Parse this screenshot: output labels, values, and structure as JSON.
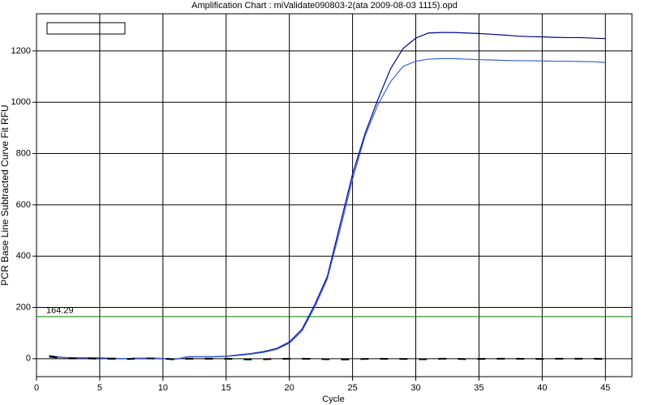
{
  "chart_data": {
    "type": "line",
    "title": "Amplification Chart : miValidate090803-2(ata 2009-08-03 1115).opd",
    "xlabel": "Cycle",
    "ylabel": "PCR Base Line Subtracted Curve Fit RFU",
    "x": [
      1,
      2,
      3,
      4,
      5,
      6,
      7,
      8,
      9,
      10,
      11,
      12,
      13,
      14,
      15,
      16,
      17,
      18,
      19,
      20,
      21,
      22,
      23,
      24,
      25,
      26,
      27,
      28,
      29,
      30,
      31,
      32,
      33,
      34,
      35,
      36,
      37,
      38,
      39,
      40,
      41,
      42,
      43,
      44,
      45
    ],
    "series": [
      {
        "color": "#00008b",
        "values": [
          12,
          5,
          3,
          3,
          3,
          2,
          0,
          2,
          2,
          1,
          -2,
          8,
          8,
          8,
          10,
          15,
          20,
          28,
          40,
          65,
          115,
          210,
          320,
          520,
          720,
          880,
          1010,
          1130,
          1210,
          1250,
          1270,
          1272,
          1272,
          1270,
          1268,
          1265,
          1262,
          1258,
          1256,
          1255,
          1253,
          1252,
          1252,
          1250,
          1248
        ]
      },
      {
        "color": "#3a5fe0",
        "values": [
          10,
          4,
          3,
          3,
          3,
          2,
          0,
          2,
          2,
          1,
          -2,
          7,
          7,
          7,
          9,
          13,
          18,
          25,
          37,
          60,
          108,
          200,
          310,
          500,
          700,
          870,
          990,
          1080,
          1140,
          1160,
          1168,
          1170,
          1170,
          1168,
          1166,
          1165,
          1163,
          1162,
          1162,
          1161,
          1160,
          1160,
          1159,
          1158,
          1155
        ]
      },
      {
        "color": "#000000",
        "dashed": true,
        "values": [
          8,
          2,
          1,
          1,
          0,
          0,
          -2,
          1,
          1,
          0,
          -3,
          0,
          0,
          0,
          0,
          -2,
          -3,
          -2,
          -1,
          0,
          0,
          -1,
          -2,
          -3,
          -3,
          -1,
          0,
          -1,
          -1,
          -2,
          -2,
          0,
          0,
          -2,
          -1,
          0,
          0,
          0,
          -1,
          -1,
          0,
          0,
          0,
          0,
          -1
        ]
      }
    ],
    "threshold": 164.29,
    "threshold_color": "#008000",
    "xlim": [
      0,
      47.1
    ],
    "ylim": [
      -70,
      1345
    ],
    "xticks": [
      0,
      5,
      10,
      15,
      20,
      25,
      30,
      35,
      40,
      45
    ],
    "yticks": [
      0,
      200,
      400,
      600,
      800,
      1000,
      1200
    ],
    "grid": true
  }
}
